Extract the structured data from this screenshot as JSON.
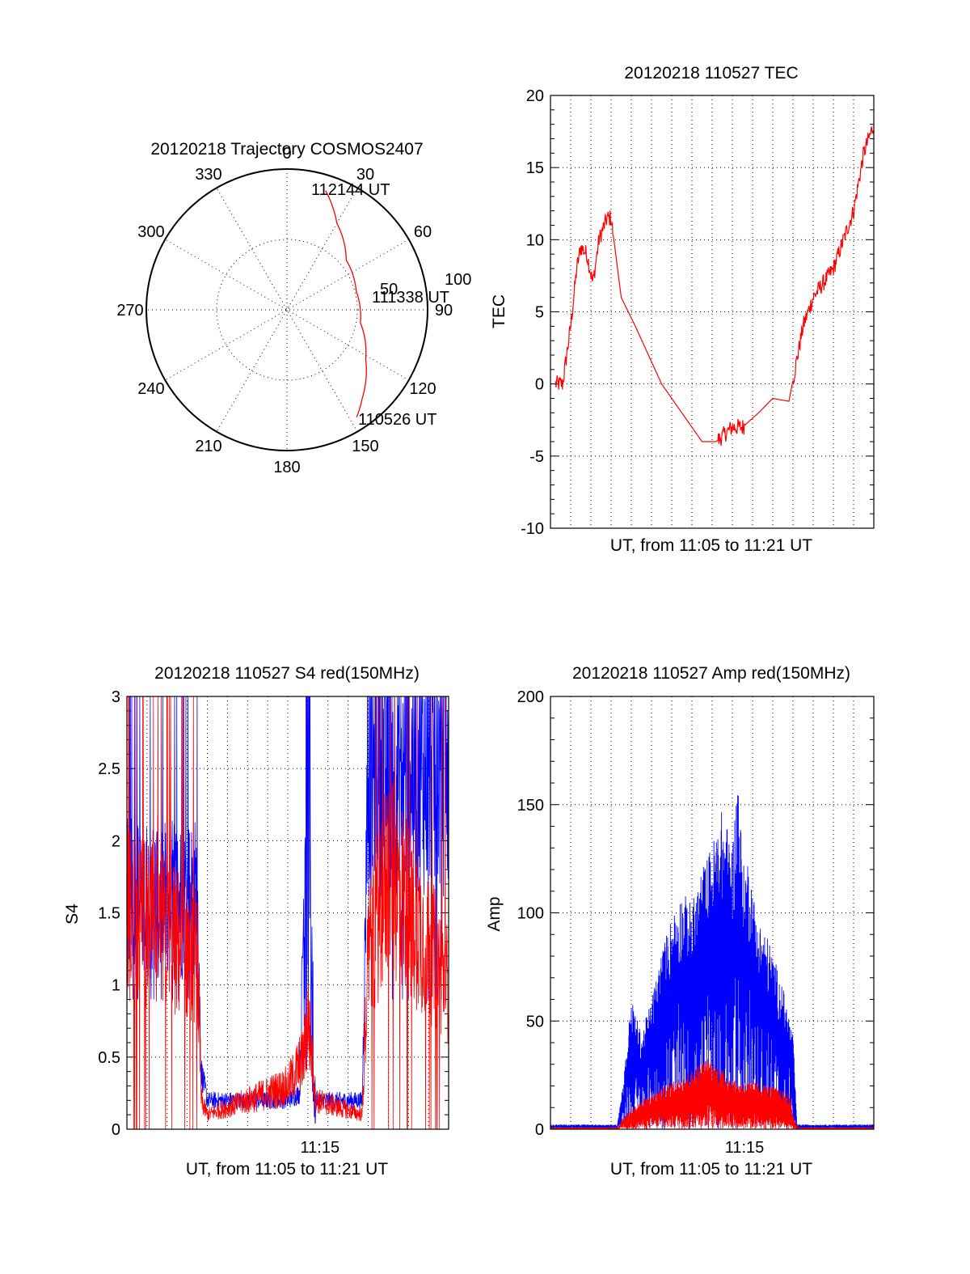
{
  "figure_date": "20120218",
  "colors": {
    "red_channel": "#ff0000",
    "blue_channel": "#0000ff"
  },
  "chart_data": [
    {
      "id": "trajectory",
      "type": "polar",
      "title": "20120218 Trajectory COSMOS2407",
      "azimuth_labels": [
        "0",
        "30",
        "60",
        "90",
        "120",
        "150",
        "180",
        "210",
        "240",
        "270",
        "300",
        "330"
      ],
      "radius_labels": [
        "50",
        "100"
      ],
      "elevation_range": [
        0,
        100
      ],
      "track": {
        "name": "COSMOS2407",
        "points": [
          {
            "az": 18,
            "r": 89
          },
          {
            "az": 30,
            "r": 71
          },
          {
            "az": 50,
            "r": 55
          },
          {
            "az": 75,
            "r": 51
          },
          {
            "az": 100,
            "r": 53
          },
          {
            "az": 122,
            "r": 66
          },
          {
            "az": 140,
            "r": 83
          },
          {
            "az": 147,
            "r": 91
          }
        ]
      },
      "annotations": [
        {
          "text": "112144 UT",
          "az": 18,
          "r": 89
        },
        {
          "text": "111338 UT",
          "az": 75,
          "r": 51
        },
        {
          "text": "110526 UT",
          "az": 147,
          "r": 91
        }
      ]
    },
    {
      "id": "tec",
      "type": "line",
      "title": "20120218 110527 TEC",
      "xlabel": "UT, from 11:05 to 11:21 UT",
      "ylabel": "TEC",
      "xlim": [
        0,
        16
      ],
      "ylim": [
        -10,
        20
      ],
      "yticks": [
        "20",
        "15",
        "10",
        "5",
        "0",
        "-5",
        "-10"
      ],
      "xticks": [],
      "series": [
        {
          "color": "red",
          "points": [
            [
              0.0,
              0
            ],
            [
              0.3,
              0
            ],
            [
              0.6,
              0
            ],
            [
              1.0,
              4
            ],
            [
              1.3,
              8
            ],
            [
              1.5,
              9.5
            ],
            [
              1.8,
              9
            ],
            [
              2.1,
              7
            ],
            [
              2.4,
              10
            ],
            [
              2.8,
              11.5
            ],
            [
              3.0,
              11.5
            ],
            [
              3.5,
              6
            ],
            [
              4.2,
              4
            ],
            [
              5.5,
              0
            ],
            [
              6.5,
              -2
            ],
            [
              7.5,
              -4
            ],
            [
              8.2,
              -4
            ],
            [
              9.0,
              -3
            ],
            [
              9.5,
              -3
            ],
            [
              10.3,
              -2
            ],
            [
              11.0,
              -1
            ],
            [
              11.8,
              -1.2
            ],
            [
              12.1,
              1
            ],
            [
              12.5,
              4
            ],
            [
              13.0,
              6
            ],
            [
              13.5,
              7
            ],
            [
              14.0,
              8
            ],
            [
              14.5,
              10
            ],
            [
              15.0,
              12
            ],
            [
              15.5,
              16
            ],
            [
              16.0,
              18
            ]
          ]
        }
      ]
    },
    {
      "id": "s4",
      "type": "line",
      "title": "20120218 110527 S4 red(150MHz)",
      "xlabel": "UT, from 11:05 to 11:21 UT",
      "ylabel": "S4",
      "xlim": [
        0,
        16
      ],
      "ylim": [
        0,
        3
      ],
      "yticks": [
        "3",
        "2.5",
        "2",
        "1.5",
        "1",
        "0.5",
        "0"
      ],
      "xticks": [
        {
          "label": "11:15",
          "x": 9.6
        }
      ],
      "series": [
        {
          "color": "blue",
          "description_segments": [
            [
              0.2,
              1.6
            ],
            [
              3.5,
              1.6
            ],
            [
              3.7,
              0.4
            ],
            [
              4.0,
              0.2
            ],
            [
              8.0,
              0.2
            ],
            [
              8.6,
              0.25
            ],
            [
              9.0,
              3
            ],
            [
              9.3,
              0.2
            ],
            [
              11.7,
              0.2
            ],
            [
              12.0,
              2.5
            ],
            [
              16.0,
              2.5
            ]
          ]
        },
        {
          "color": "red",
          "description_segments": [
            [
              0.2,
              1.5
            ],
            [
              3.5,
              1.2
            ],
            [
              3.7,
              0.2
            ],
            [
              4.0,
              0.1
            ],
            [
              6.0,
              0.2
            ],
            [
              8.0,
              0.3
            ],
            [
              8.8,
              0.5
            ],
            [
              9.0,
              0.8
            ],
            [
              9.4,
              0.2
            ],
            [
              11.7,
              0.1
            ],
            [
              12.0,
              1.2
            ],
            [
              13.0,
              1.8
            ],
            [
              16.0,
              1.0
            ]
          ]
        }
      ]
    },
    {
      "id": "amp",
      "type": "line",
      "title": "20120218 110527 Amp red(150MHz)",
      "xlabel": "UT, from 11:05 to 11:21 UT",
      "ylabel": "Amp",
      "xlim": [
        0,
        16
      ],
      "ylim": [
        0,
        200
      ],
      "yticks": [
        "200",
        "150",
        "100",
        "50",
        "0"
      ],
      "xticks": [
        {
          "label": "11:15",
          "x": 9.6
        }
      ],
      "series": [
        {
          "color": "blue",
          "envelope": [
            [
              0,
              2
            ],
            [
              3.3,
              2
            ],
            [
              3.6,
              20
            ],
            [
              4.0,
              55
            ],
            [
              4.5,
              40
            ],
            [
              5.0,
              55
            ],
            [
              5.5,
              75
            ],
            [
              6.0,
              90
            ],
            [
              6.5,
              100
            ],
            [
              7.0,
              95
            ],
            [
              7.5,
              110
            ],
            [
              8.0,
              120
            ],
            [
              8.5,
              135
            ],
            [
              9.0,
              120
            ],
            [
              9.3,
              155
            ],
            [
              9.5,
              110
            ],
            [
              9.8,
              115
            ],
            [
              10.2,
              90
            ],
            [
              10.8,
              80
            ],
            [
              11.5,
              60
            ],
            [
              12.0,
              40
            ],
            [
              12.2,
              2
            ],
            [
              16,
              2
            ]
          ]
        },
        {
          "color": "red",
          "envelope": [
            [
              0,
              0
            ],
            [
              3.3,
              0
            ],
            [
              3.6,
              5
            ],
            [
              4.2,
              10
            ],
            [
              5.0,
              15
            ],
            [
              6.0,
              20
            ],
            [
              7.0,
              25
            ],
            [
              7.8,
              30
            ],
            [
              8.5,
              25
            ],
            [
              9.2,
              20
            ],
            [
              10.0,
              20
            ],
            [
              11.0,
              18
            ],
            [
              11.8,
              15
            ],
            [
              12.1,
              3
            ],
            [
              12.3,
              0
            ],
            [
              16,
              0
            ]
          ]
        }
      ]
    }
  ]
}
